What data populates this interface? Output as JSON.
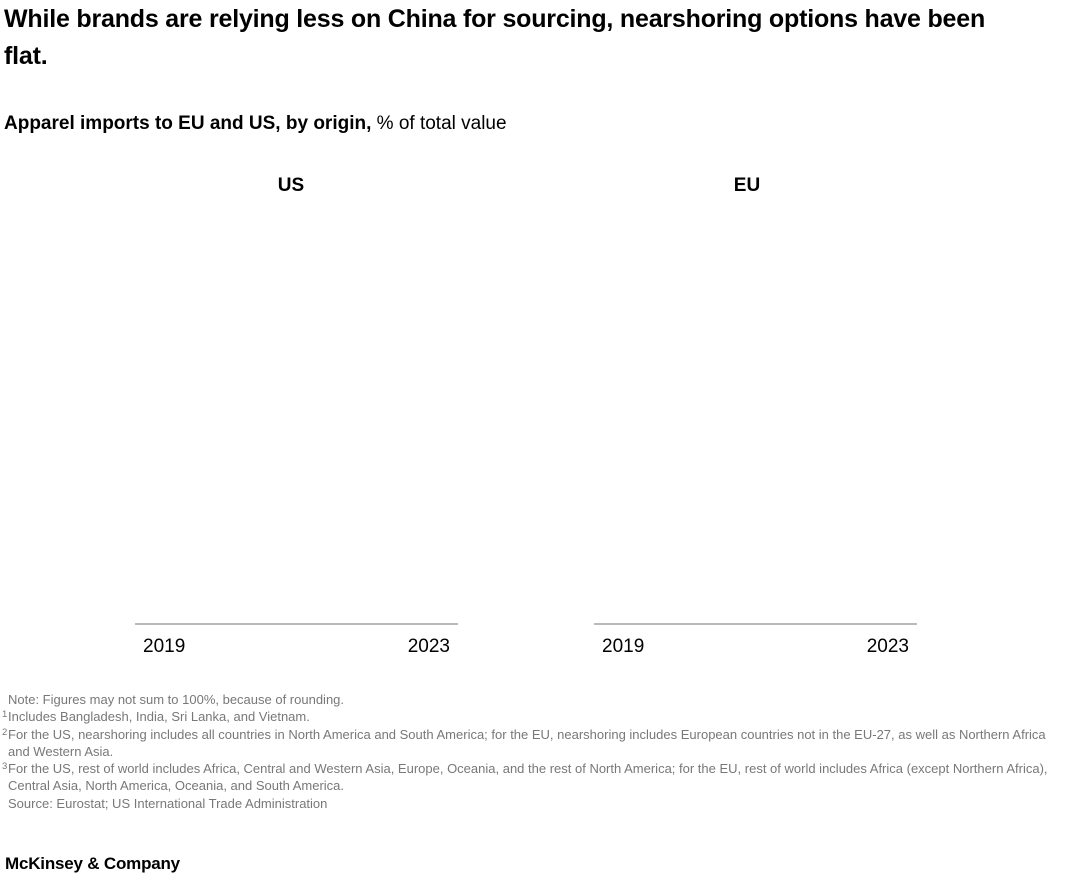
{
  "header": {
    "title": "While brands are relying less on China for sourcing, nearshoring options have been flat.",
    "subtitle_bold": "Apparel imports to EU and US, by origin,",
    "subtitle_rest": " % of total value"
  },
  "chart_data": {
    "type": "area",
    "description": "Two side-by-side panels; plot areas are blank in the screenshot (no series rendered), only panel titles, baseline x-axes and year ticks are visible.",
    "panels": [
      {
        "title": "US",
        "x_ticks": [
          "2019",
          "2023"
        ],
        "series": []
      },
      {
        "title": "EU",
        "x_ticks": [
          "2019",
          "2023"
        ],
        "series": []
      }
    ],
    "xlabel": "",
    "ylabel": "% of total value",
    "grid": false,
    "legend": false
  },
  "footnotes": [
    {
      "sup": "",
      "text": "Note: Figures may not sum to 100%, because of rounding."
    },
    {
      "sup": "1",
      "text": "Includes Bangladesh, India, Sri Lanka, and Vietnam."
    },
    {
      "sup": "2",
      "text": "For the US, nearshoring includes all countries in North America and South America; for the EU, nearshoring includes European countries not in the EU-27, as well as Northern Africa and Western Asia."
    },
    {
      "sup": "3",
      "text": "For the US, rest of world includes Africa, Central and Western Asia, Europe, Oceania, and the rest of North America; for the EU, rest of world includes Africa (except Northern Africa), Central Asia, North America, Oceania, and South America."
    },
    {
      "sup": "",
      "text": "Source: Eurostat; US International Trade Administration"
    }
  ],
  "logo_text": "McKinsey & Company",
  "colors": {
    "text": "#000000",
    "footnote": "#77787b",
    "axis_line": "#b9b9b9",
    "background": "#ffffff"
  }
}
